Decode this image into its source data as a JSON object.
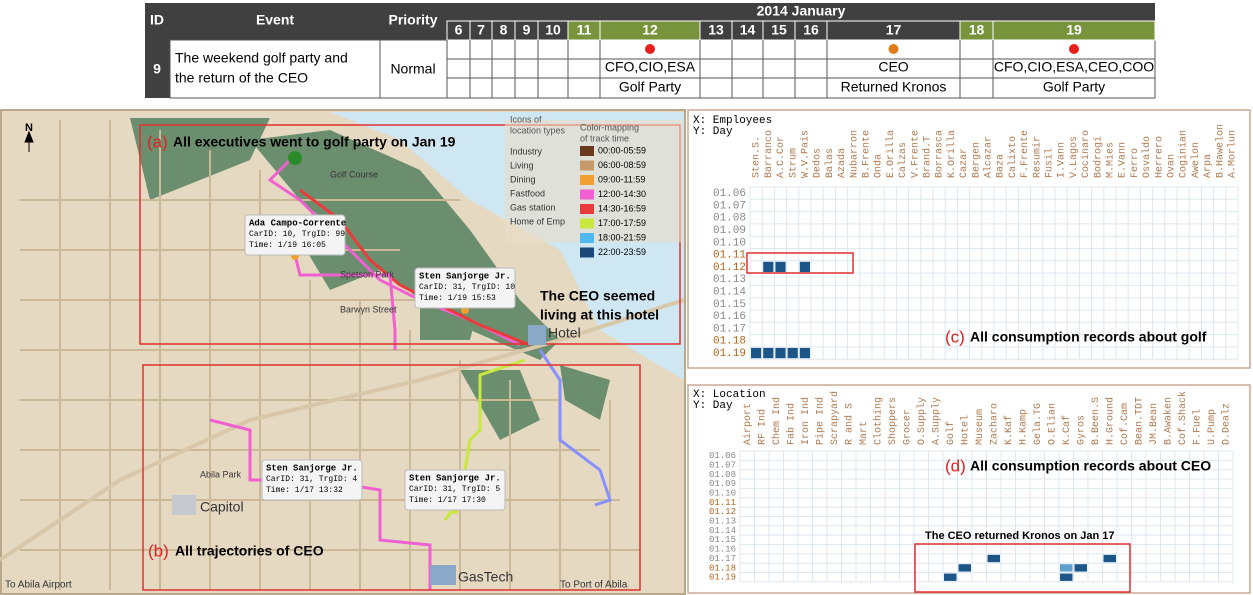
{
  "table": {
    "headers": {
      "id": "ID",
      "event": "Event",
      "priority": "Priority",
      "month": "2014 January"
    },
    "days": [
      6,
      7,
      8,
      9,
      10,
      11,
      12,
      13,
      14,
      15,
      16,
      17,
      18,
      19
    ],
    "weekend": [
      false,
      false,
      false,
      false,
      false,
      true,
      true,
      false,
      false,
      false,
      false,
      false,
      true,
      true
    ],
    "row": {
      "id": "9",
      "event": [
        "The weekend golf party and",
        "the return of the CEO"
      ],
      "priority": "Normal",
      "dots": [
        null,
        null,
        null,
        null,
        null,
        null,
        "#e8201c",
        null,
        null,
        null,
        null,
        "#e07b1a",
        null,
        "#e8201c"
      ],
      "people": [
        null,
        null,
        null,
        null,
        null,
        null,
        "CFO,CIO,ESA",
        null,
        null,
        null,
        null,
        "CEO",
        null,
        "CFO,CIO,ESA,CEO,COO"
      ],
      "events": [
        null,
        null,
        null,
        null,
        null,
        null,
        "Golf Party",
        null,
        null,
        null,
        null,
        "Returned Kronos",
        null,
        "Golf Party"
      ]
    }
  },
  "map": {
    "north": "N",
    "a_tag": "(a)",
    "a_text": "All executives went to golf party on Jan 19",
    "b_tag": "(b)",
    "b_text": "All trajectories of CEO",
    "hotel_note": [
      "The CEO seemed",
      "living at this hotel"
    ],
    "places": {
      "hotel": "Hotel",
      "capitol": "Capitol",
      "gastech": "GasTech",
      "airport": "To Abila Airport",
      "port": "To Port of Abila",
      "spetson": "Spetson Park",
      "barwyn": "Barwyn Street",
      "golf": "Golf Course",
      "abila": "Abila Park"
    },
    "icons_title": [
      "Icons of",
      "location types"
    ],
    "icons": [
      "Industry",
      "Living",
      "Dining",
      "Fastfood",
      "Gas station",
      "Home of Emp"
    ],
    "time_title": [
      "Color-mapping",
      "of track time"
    ],
    "times": [
      {
        "label": "00:00-05:59",
        "color": "#6b3a1e"
      },
      {
        "label": "06:00-08:59",
        "color": "#c79a6c"
      },
      {
        "label": "09:00-11:59",
        "color": "#f0a030"
      },
      {
        "label": "12:00-14:30",
        "color": "#f060d0"
      },
      {
        "label": "14:30-16:59",
        "color": "#e83c3c"
      },
      {
        "label": "17:00-17:59",
        "color": "#c8e840"
      },
      {
        "label": "18:00-21:59",
        "color": "#50b8f0"
      },
      {
        "label": "22:00-23:59",
        "color": "#1c4a78"
      }
    ],
    "tooltips": [
      {
        "name": "Ada Campo-Corrente",
        "car": "CarID: 10, TrgID: 99",
        "time": "Time: 1/19 16:05"
      },
      {
        "name": "Sten Sanjorge Jr.",
        "car": "CarID: 31, TrgID: 10",
        "time": "Time: 1/19 15:53"
      },
      {
        "name": "Sten Sanjorge Jr.",
        "car": "CarID: 31, TrgID: 4",
        "time": "Time: 1/17 13:32"
      },
      {
        "name": "Sten Sanjorge Jr.",
        "car": "CarID: 31, TrgID: 5",
        "time": "Time: 1/17 17:30"
      }
    ]
  },
  "golf": {
    "x_label": "X: Employees",
    "y_label": "Y: Day",
    "tag": "(c)",
    "note": "All consumption records about golf",
    "columns": [
      "Sten.S.",
      "Barranco",
      "A.C.Cor",
      "Strum",
      "W.V.Pais",
      "Dedos",
      "Balas",
      "Azada",
      "Nubarron",
      "B.Frente",
      "Onda",
      "E.Orilla",
      "Calzas",
      "V.Frente",
      "Brand.T",
      "Borrasca",
      "K.Orilla",
      "Cazar",
      "Bergen",
      "Alcazar",
      "Baza",
      "Calixto",
      "F.Frente",
      "Resumir",
      "Fusil",
      "I.Vann",
      "V.Lagos",
      "Cocinaro",
      "Bodrogi",
      "M.Mies",
      "E.Vann",
      "Ferro",
      "Osvaldo",
      "Herrero",
      "Ovan",
      "Coginian",
      "Awelon",
      "Arpa",
      "B.Hawelon",
      "A.Morlun"
    ],
    "days": [
      "01.06",
      "01.07",
      "01.08",
      "01.09",
      "01.10",
      "01.11",
      "01.12",
      "01.13",
      "01.14",
      "01.15",
      "01.16",
      "01.17",
      "01.18",
      "01.19"
    ],
    "weekend": [
      false,
      false,
      false,
      false,
      false,
      true,
      true,
      false,
      false,
      false,
      false,
      false,
      true,
      true
    ],
    "records": [
      {
        "day": "01.12",
        "column": "Barranco",
        "color": "#1c5588"
      },
      {
        "day": "01.12",
        "column": "A.C.Cor",
        "color": "#1c5588"
      },
      {
        "day": "01.12",
        "column": "W.V.Pais",
        "color": "#1c5588"
      },
      {
        "day": "01.19",
        "column": "Sten.S.",
        "color": "#1c5588"
      },
      {
        "day": "01.19",
        "column": "Barranco",
        "color": "#1c5588"
      },
      {
        "day": "01.19",
        "column": "A.C.Cor",
        "color": "#1c5588"
      },
      {
        "day": "01.19",
        "column": "Strum",
        "color": "#1c5588"
      },
      {
        "day": "01.19",
        "column": "W.V.Pais",
        "color": "#1c5588"
      }
    ]
  },
  "ceo": {
    "x_label": "X: Location",
    "y_label": "Y: Day",
    "tag": "(d)",
    "note": "All consumption records about CEO",
    "box_note": "The CEO returned Kronos on Jan 17",
    "columns": [
      "Airport",
      "RF Ind",
      "Chem Ind",
      "Fab Ind",
      "Iron Ind",
      "Pipe Ind",
      "Scrapyard",
      "R and S",
      "Mart",
      "Clothing",
      "Shoppers",
      "Grocer",
      "O.Supply",
      "A.Supply",
      "Golf",
      "Hotel",
      "Museum",
      "Zacharo",
      "K.Kaf",
      "H.Kamp",
      "Gela.TG",
      "O.Elian",
      "K.Caf",
      "Gyros",
      "B.Been.S",
      "H.Ground",
      "Cof.Cam",
      "Bean.TDT",
      "JM.Bean",
      "B.Awaken",
      "Cof.Shack",
      "F.Fuel",
      "U.Pump",
      "D.Dealz"
    ],
    "days": [
      "01.06",
      "01.07",
      "01.08",
      "01.09",
      "01.10",
      "01.11",
      "01.12",
      "01.13",
      "01.14",
      "01.15",
      "01.16",
      "01.17",
      "01.18",
      "01.19"
    ],
    "weekend": [
      false,
      false,
      false,
      false,
      false,
      true,
      true,
      false,
      false,
      false,
      false,
      false,
      true,
      true
    ],
    "records": [
      {
        "day": "01.17",
        "column": "Zacharo",
        "color": "#1c5588"
      },
      {
        "day": "01.17",
        "column": "H.Ground",
        "color": "#1c5588"
      },
      {
        "day": "01.18",
        "column": "Hotel",
        "color": "#1c5588"
      },
      {
        "day": "01.18",
        "column": "K.Caf",
        "color": "#5fa0d0"
      },
      {
        "day": "01.18",
        "column": "Gyros",
        "color": "#1c5588"
      },
      {
        "day": "01.19",
        "column": "Golf",
        "color": "#1c5588"
      },
      {
        "day": "01.19",
        "column": "K.Caf",
        "color": "#1c5588"
      }
    ]
  }
}
